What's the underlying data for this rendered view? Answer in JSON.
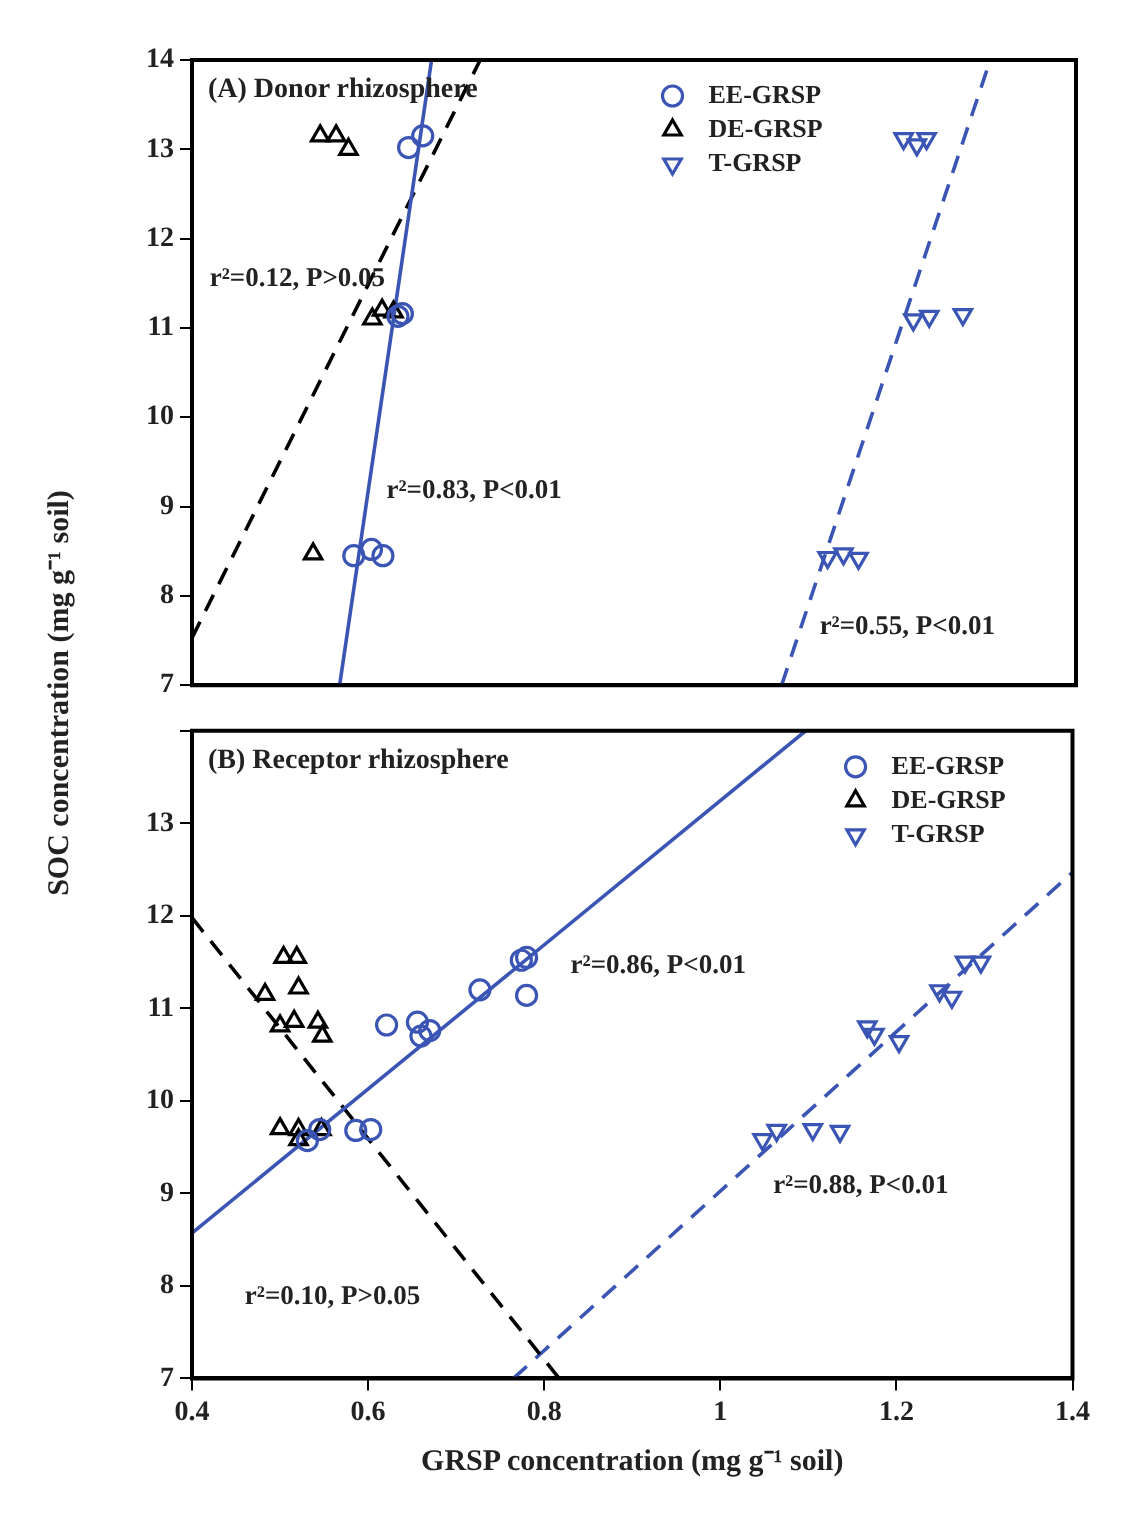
{
  "chart_data": [
    {
      "type": "scatter",
      "title": "(A) Donor rhizosphere",
      "ylabel": "SOC concentration (mg g⁻¹ soil)",
      "xlim": [
        0.4,
        1.4
      ],
      "ylim": [
        7,
        14
      ],
      "xticks": [
        0.4,
        0.6,
        0.8,
        1.0,
        1.2,
        1.4
      ],
      "yticks": [
        7,
        8,
        9,
        10,
        11,
        12,
        13,
        14
      ],
      "tick_labels": "y",
      "grid": false,
      "legend": "top right",
      "series": [
        {
          "name": "EE-GRSP",
          "color": "#3a55b4",
          "marker": "circle",
          "x": [
            0.645,
            0.661,
            0.633,
            0.638,
            0.583,
            0.603,
            0.616
          ],
          "values": [
            13.02,
            13.15,
            11.13,
            11.16,
            8.45,
            8.52,
            8.45
          ]
        },
        {
          "name": "DE-GRSP",
          "color": "#000000",
          "marker": "triangle",
          "x": [
            0.545,
            0.563,
            0.577,
            0.604,
            0.615,
            0.628,
            0.537
          ],
          "values": [
            13.15,
            13.15,
            13.0,
            11.1,
            11.2,
            11.18,
            8.47
          ]
        },
        {
          "name": "T-GRSP",
          "color": "#3a55b4",
          "marker": "triangle-down",
          "x": [
            1.205,
            1.22,
            1.231,
            1.216,
            1.234,
            1.272,
            1.119,
            1.137,
            1.154
          ],
          "values": [
            13.12,
            13.05,
            13.12,
            11.09,
            11.13,
            11.15,
            8.43,
            8.47,
            8.42
          ]
        },
        {
          "type": "line",
          "color": "#3a55b4",
          "marker": "none",
          "line_style": "solid",
          "x": [
            0.567,
            0.671
          ],
          "values": [
            7,
            14
          ]
        },
        {
          "type": "line",
          "color": "#000000",
          "marker": "none",
          "line_style": "dashed",
          "x": [
            0.4,
            0.726
          ],
          "values": [
            7.53,
            14
          ]
        },
        {
          "type": "line",
          "color": "#3a55b4",
          "marker": "none",
          "line_style": "dashed",
          "x": [
            1.067,
            1.303
          ],
          "values": [
            7,
            14
          ]
        }
      ],
      "annotations": [
        "r²=0.12, P>0.05",
        "r²=0.83, P<0.01",
        "r²=0.55, P<0.01"
      ]
    },
    {
      "type": "scatter",
      "title": "(B) Receptor rhizosphere",
      "xlabel": "GRSP concentration (mg g⁻¹ soil)",
      "xlim": [
        0.4,
        1.4
      ],
      "ylim": [
        7,
        14
      ],
      "xticks": [
        0.4,
        0.6,
        0.8,
        1.0,
        1.2,
        1.4
      ],
      "yticks": [
        7,
        8,
        9,
        10,
        11,
        12,
        13,
        {
          "value": 14,
          "label": null
        }
      ],
      "grid": false,
      "legend": "top right",
      "series": [
        {
          "name": "EE-GRSP",
          "color": "#3a55b4",
          "marker": "circle",
          "x": [
            0.621,
            0.656,
            0.66,
            0.67,
            0.727,
            0.774,
            0.78,
            0.78,
            0.531,
            0.545,
            0.586,
            0.603
          ],
          "values": [
            10.82,
            10.85,
            10.7,
            10.76,
            11.2,
            11.52,
            11.14,
            11.55,
            9.57,
            9.69,
            9.68,
            9.69
          ]
        },
        {
          "name": "DE-GRSP",
          "color": "#000000",
          "marker": "triangle",
          "x": [
            0.504,
            0.519,
            0.483,
            0.521,
            0.5,
            0.516,
            0.543,
            0.548,
            0.5,
            0.521,
            0.521,
            0.547
          ],
          "values": [
            11.55,
            11.55,
            11.15,
            11.22,
            10.81,
            10.86,
            10.85,
            10.7,
            9.7,
            9.69,
            9.58,
            9.69
          ]
        },
        {
          "name": "T-GRSP",
          "color": "#3a55b4",
          "marker": "triangle-down",
          "x": [
            1.048,
            1.064,
            1.105,
            1.136,
            1.167,
            1.175,
            1.203,
            1.249,
            1.263,
            1.278,
            1.296
          ],
          "values": [
            9.58,
            9.68,
            9.69,
            9.67,
            10.8,
            10.72,
            10.64,
            11.19,
            11.12,
            11.5,
            11.5
          ]
        },
        {
          "type": "line",
          "color": "#3a55b4",
          "marker": "none",
          "line_style": "solid",
          "x": [
            0.4,
            1.097
          ],
          "values": [
            8.57,
            14
          ]
        },
        {
          "type": "line",
          "color": "#000000",
          "marker": "none",
          "line_style": "dashed",
          "x": [
            0.4,
            0.817
          ],
          "values": [
            11.98,
            7
          ]
        },
        {
          "type": "line",
          "color": "#3a55b4",
          "marker": "none",
          "line_style": "dashed",
          "x": [
            0.765,
            1.4
          ],
          "values": [
            7,
            12.47
          ]
        }
      ],
      "annotations": [
        "r²=0.86, P<0.01",
        "r²=0.88, P<0.01",
        "r²=0.10, P>0.05"
      ]
    }
  ]
}
